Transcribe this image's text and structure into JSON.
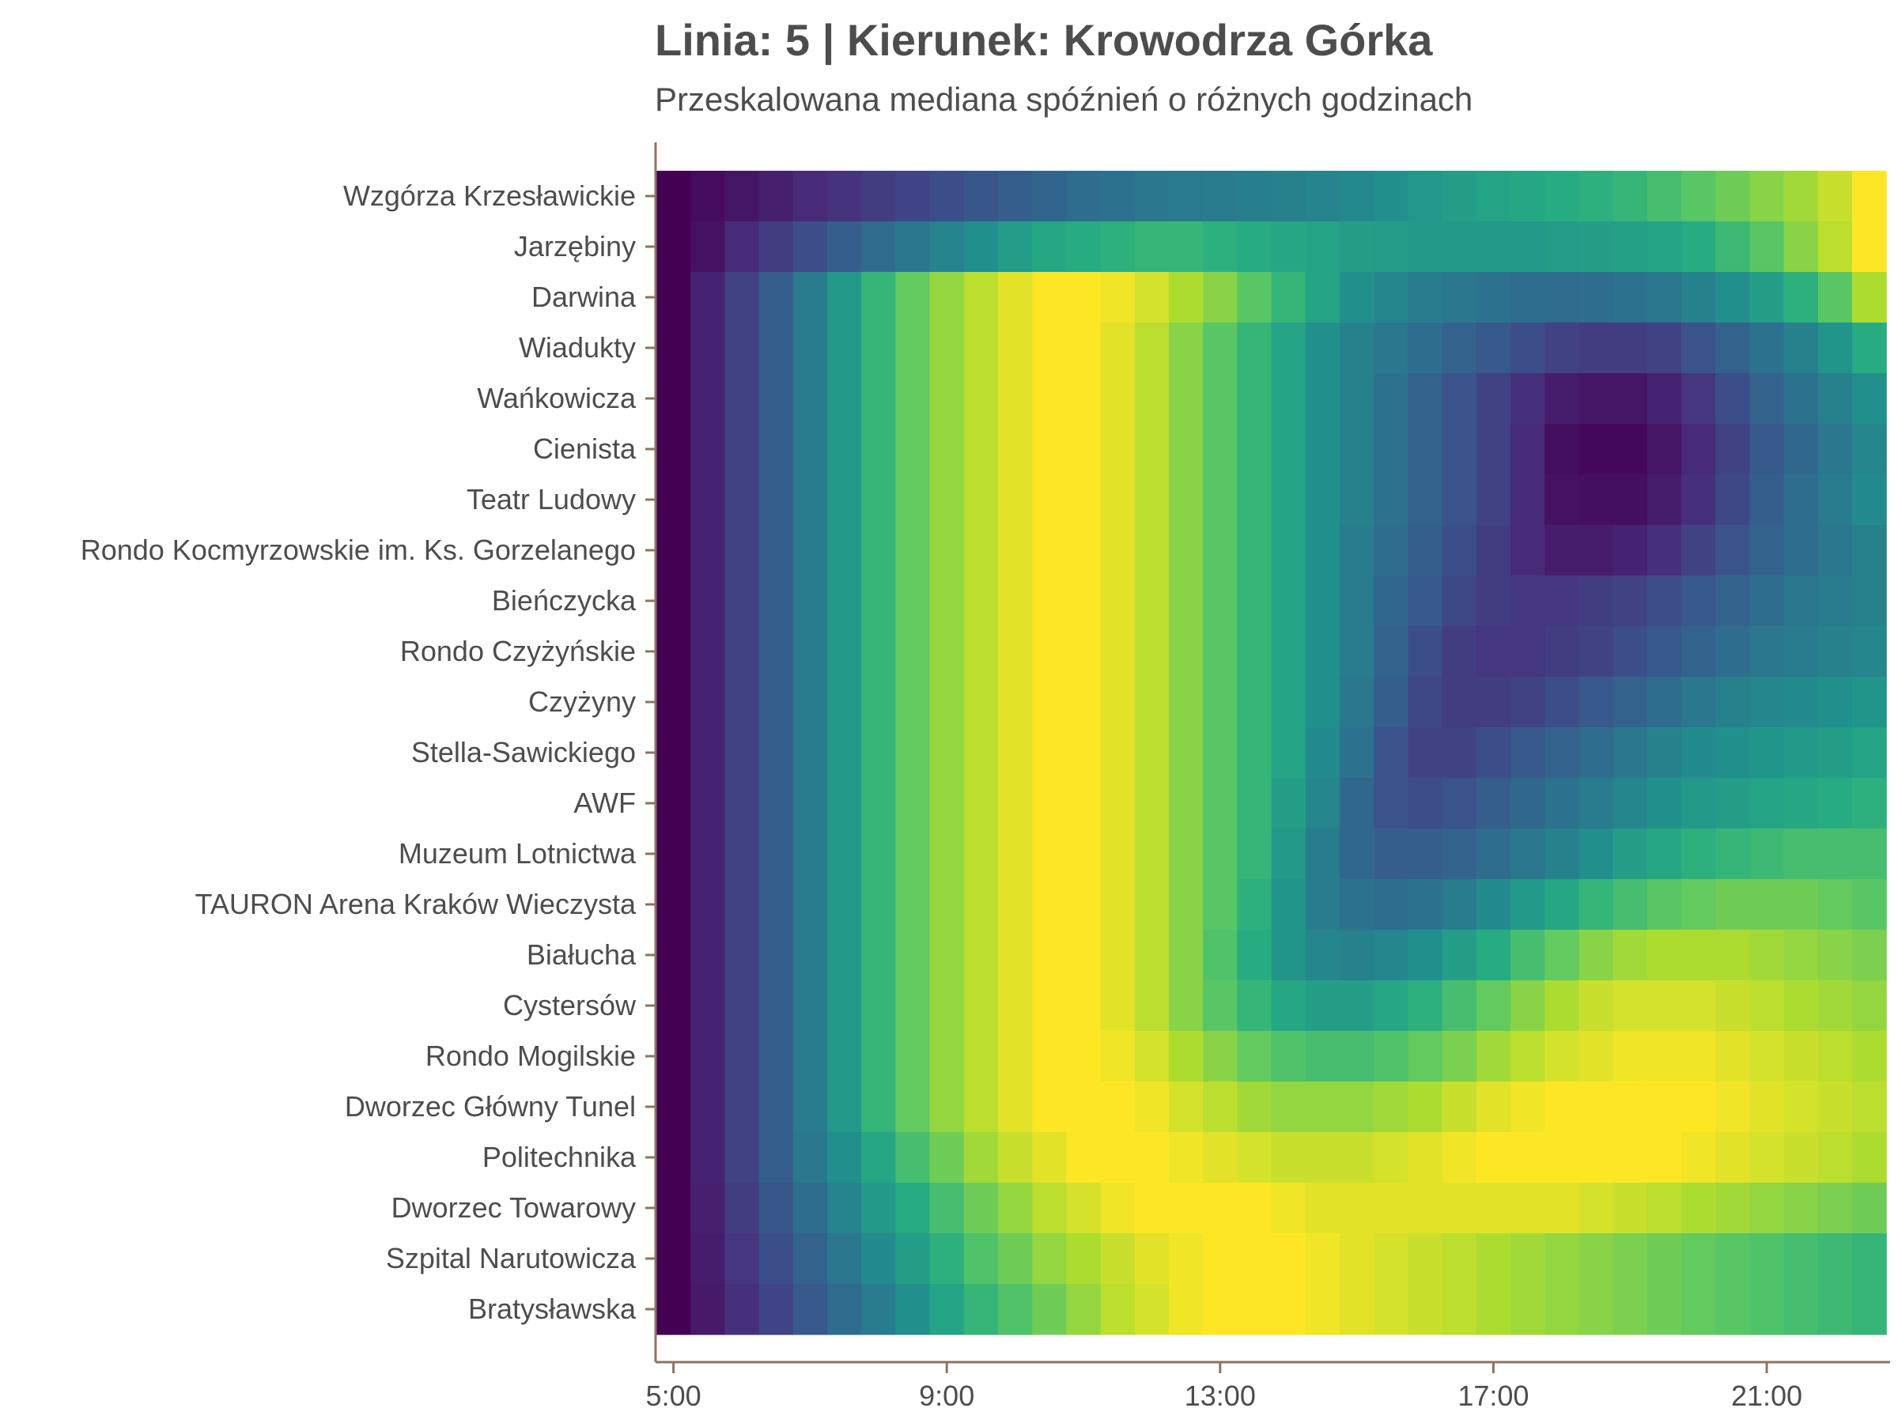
{
  "chart_data": {
    "type": "heatmap",
    "title": "Linia: 5 | Kierunek: Krowodrza Górka",
    "subtitle": "Przeskalowana mediana spóźnień o różnych godzinach",
    "xlabel": "",
    "ylabel": "",
    "x": [
      "5:00",
      "5:30",
      "6:00",
      "6:30",
      "7:00",
      "7:30",
      "8:00",
      "8:30",
      "9:00",
      "9:30",
      "10:00",
      "10:30",
      "11:00",
      "11:30",
      "12:00",
      "12:30",
      "13:00",
      "13:30",
      "14:00",
      "14:30",
      "15:00",
      "15:30",
      "16:00",
      "16:30",
      "17:00",
      "17:30",
      "18:00",
      "18:30",
      "19:00",
      "19:30",
      "20:00",
      "20:30",
      "21:00",
      "21:30",
      "22:00",
      "22:30"
    ],
    "x_ticks": [
      "5:00",
      "9:00",
      "13:00",
      "17:00",
      "21:00"
    ],
    "y": [
      "Wzgórza Krzesławickie",
      "Jarzębiny",
      "Darwina",
      "Wiadukty",
      "Wańkowicza",
      "Cienista",
      "Teatr Ludowy",
      "Rondo Kocmyrzowskie im. Ks. Gorzelanego",
      "Bieńczycka",
      "Rondo Czyżyńskie",
      "Czyżyny",
      "Stella-Sawickiego",
      "AWF",
      "Muzeum Lotnictwa",
      "TAURON Arena Kraków Wieczysta",
      "Białucha",
      "Cystersów",
      "Rondo Mogilskie",
      "Dworzec Główny Tunel",
      "Politechnika",
      "Dworzec Towarowy",
      "Szpital Narutowicza",
      "Bratysławska"
    ],
    "value_range": [
      0,
      1
    ],
    "colormap": "viridis",
    "grid": false,
    "legend": "none",
    "values": [
      [
        0.0,
        0.03,
        0.06,
        0.09,
        0.12,
        0.15,
        0.18,
        0.21,
        0.24,
        0.27,
        0.3,
        0.33,
        0.36,
        0.38,
        0.4,
        0.41,
        0.42,
        0.43,
        0.44,
        0.45,
        0.47,
        0.5,
        0.53,
        0.56,
        0.58,
        0.6,
        0.62,
        0.64,
        0.66,
        0.7,
        0.74,
        0.78,
        0.82,
        0.86,
        0.92,
        1.0
      ],
      [
        0.0,
        0.05,
        0.12,
        0.18,
        0.24,
        0.3,
        0.35,
        0.4,
        0.45,
        0.5,
        0.55,
        0.6,
        0.62,
        0.64,
        0.66,
        0.66,
        0.64,
        0.62,
        0.6,
        0.58,
        0.56,
        0.55,
        0.54,
        0.54,
        0.54,
        0.54,
        0.55,
        0.56,
        0.57,
        0.58,
        0.62,
        0.68,
        0.74,
        0.82,
        0.9,
        1.0
      ],
      [
        0.0,
        0.1,
        0.2,
        0.3,
        0.42,
        0.54,
        0.66,
        0.76,
        0.84,
        0.9,
        0.96,
        1.0,
        1.0,
        0.98,
        0.94,
        0.88,
        0.82,
        0.74,
        0.66,
        0.58,
        0.5,
        0.46,
        0.42,
        0.4,
        0.38,
        0.36,
        0.35,
        0.36,
        0.38,
        0.4,
        0.44,
        0.5,
        0.56,
        0.64,
        0.74,
        0.88
      ],
      [
        0.0,
        0.1,
        0.2,
        0.3,
        0.42,
        0.54,
        0.66,
        0.76,
        0.84,
        0.9,
        0.96,
        1.0,
        1.0,
        0.96,
        0.9,
        0.82,
        0.74,
        0.66,
        0.58,
        0.5,
        0.44,
        0.4,
        0.36,
        0.32,
        0.28,
        0.24,
        0.2,
        0.18,
        0.18,
        0.2,
        0.26,
        0.32,
        0.38,
        0.44,
        0.52,
        0.62
      ],
      [
        0.0,
        0.1,
        0.2,
        0.3,
        0.42,
        0.54,
        0.66,
        0.76,
        0.84,
        0.9,
        0.96,
        1.0,
        1.0,
        0.96,
        0.9,
        0.82,
        0.74,
        0.66,
        0.58,
        0.5,
        0.44,
        0.38,
        0.32,
        0.26,
        0.2,
        0.14,
        0.08,
        0.06,
        0.06,
        0.1,
        0.16,
        0.24,
        0.32,
        0.38,
        0.44,
        0.5
      ],
      [
        0.0,
        0.1,
        0.2,
        0.3,
        0.42,
        0.54,
        0.66,
        0.76,
        0.84,
        0.9,
        0.96,
        1.0,
        1.0,
        0.96,
        0.9,
        0.82,
        0.74,
        0.66,
        0.58,
        0.5,
        0.44,
        0.38,
        0.32,
        0.26,
        0.2,
        0.12,
        0.04,
        0.02,
        0.02,
        0.06,
        0.12,
        0.2,
        0.28,
        0.34,
        0.4,
        0.46
      ],
      [
        0.0,
        0.1,
        0.2,
        0.3,
        0.42,
        0.54,
        0.66,
        0.76,
        0.84,
        0.9,
        0.96,
        1.0,
        1.0,
        0.96,
        0.9,
        0.82,
        0.74,
        0.66,
        0.58,
        0.5,
        0.44,
        0.38,
        0.32,
        0.26,
        0.2,
        0.12,
        0.05,
        0.04,
        0.04,
        0.08,
        0.14,
        0.22,
        0.3,
        0.36,
        0.42,
        0.48
      ],
      [
        0.0,
        0.1,
        0.2,
        0.3,
        0.42,
        0.54,
        0.66,
        0.76,
        0.84,
        0.9,
        0.96,
        1.0,
        1.0,
        0.96,
        0.9,
        0.82,
        0.74,
        0.66,
        0.58,
        0.5,
        0.42,
        0.36,
        0.3,
        0.24,
        0.18,
        0.12,
        0.08,
        0.08,
        0.1,
        0.14,
        0.2,
        0.26,
        0.32,
        0.36,
        0.4,
        0.44
      ],
      [
        0.0,
        0.1,
        0.2,
        0.3,
        0.42,
        0.54,
        0.66,
        0.76,
        0.84,
        0.9,
        0.96,
        1.0,
        1.0,
        0.96,
        0.9,
        0.82,
        0.74,
        0.66,
        0.58,
        0.5,
        0.42,
        0.34,
        0.28,
        0.22,
        0.18,
        0.16,
        0.16,
        0.18,
        0.2,
        0.24,
        0.28,
        0.32,
        0.36,
        0.4,
        0.42,
        0.44
      ],
      [
        0.0,
        0.1,
        0.2,
        0.3,
        0.42,
        0.54,
        0.66,
        0.76,
        0.84,
        0.9,
        0.96,
        1.0,
        1.0,
        0.96,
        0.9,
        0.82,
        0.74,
        0.66,
        0.58,
        0.5,
        0.42,
        0.32,
        0.24,
        0.18,
        0.16,
        0.16,
        0.18,
        0.2,
        0.24,
        0.28,
        0.32,
        0.36,
        0.4,
        0.42,
        0.44,
        0.46
      ],
      [
        0.0,
        0.1,
        0.2,
        0.3,
        0.42,
        0.54,
        0.66,
        0.76,
        0.84,
        0.9,
        0.96,
        1.0,
        1.0,
        0.96,
        0.9,
        0.82,
        0.74,
        0.66,
        0.58,
        0.5,
        0.4,
        0.3,
        0.22,
        0.18,
        0.18,
        0.2,
        0.24,
        0.28,
        0.32,
        0.36,
        0.4,
        0.44,
        0.46,
        0.48,
        0.5,
        0.52
      ],
      [
        0.0,
        0.1,
        0.2,
        0.3,
        0.42,
        0.54,
        0.66,
        0.76,
        0.84,
        0.9,
        0.96,
        1.0,
        1.0,
        0.96,
        0.9,
        0.82,
        0.74,
        0.66,
        0.58,
        0.48,
        0.38,
        0.26,
        0.2,
        0.2,
        0.24,
        0.28,
        0.32,
        0.36,
        0.4,
        0.44,
        0.48,
        0.5,
        0.52,
        0.54,
        0.56,
        0.58
      ],
      [
        0.0,
        0.1,
        0.2,
        0.3,
        0.42,
        0.54,
        0.66,
        0.76,
        0.84,
        0.9,
        0.96,
        1.0,
        1.0,
        0.96,
        0.9,
        0.82,
        0.74,
        0.66,
        0.56,
        0.46,
        0.34,
        0.26,
        0.24,
        0.26,
        0.3,
        0.34,
        0.38,
        0.42,
        0.46,
        0.5,
        0.54,
        0.56,
        0.58,
        0.6,
        0.62,
        0.64
      ],
      [
        0.0,
        0.1,
        0.2,
        0.3,
        0.42,
        0.54,
        0.66,
        0.76,
        0.84,
        0.9,
        0.96,
        1.0,
        1.0,
        0.96,
        0.9,
        0.82,
        0.74,
        0.66,
        0.54,
        0.42,
        0.34,
        0.3,
        0.3,
        0.32,
        0.36,
        0.4,
        0.44,
        0.5,
        0.56,
        0.6,
        0.64,
        0.66,
        0.68,
        0.7,
        0.7,
        0.7
      ],
      [
        0.0,
        0.1,
        0.2,
        0.3,
        0.42,
        0.54,
        0.66,
        0.76,
        0.84,
        0.9,
        0.96,
        1.0,
        1.0,
        0.96,
        0.9,
        0.82,
        0.74,
        0.64,
        0.52,
        0.42,
        0.38,
        0.36,
        0.38,
        0.42,
        0.48,
        0.54,
        0.6,
        0.66,
        0.7,
        0.74,
        0.76,
        0.78,
        0.78,
        0.78,
        0.76,
        0.74
      ],
      [
        0.0,
        0.1,
        0.2,
        0.3,
        0.42,
        0.54,
        0.66,
        0.76,
        0.84,
        0.9,
        0.96,
        1.0,
        1.0,
        0.96,
        0.9,
        0.82,
        0.72,
        0.62,
        0.52,
        0.46,
        0.44,
        0.46,
        0.5,
        0.56,
        0.62,
        0.7,
        0.76,
        0.82,
        0.86,
        0.88,
        0.88,
        0.88,
        0.86,
        0.84,
        0.82,
        0.8
      ],
      [
        0.0,
        0.1,
        0.2,
        0.3,
        0.42,
        0.54,
        0.66,
        0.76,
        0.84,
        0.9,
        0.96,
        1.0,
        1.0,
        0.96,
        0.9,
        0.82,
        0.74,
        0.66,
        0.6,
        0.56,
        0.56,
        0.6,
        0.64,
        0.7,
        0.76,
        0.82,
        0.88,
        0.92,
        0.94,
        0.94,
        0.94,
        0.92,
        0.9,
        0.88,
        0.86,
        0.84
      ],
      [
        0.0,
        0.1,
        0.2,
        0.3,
        0.42,
        0.54,
        0.66,
        0.76,
        0.84,
        0.9,
        0.96,
        1.0,
        1.0,
        0.98,
        0.94,
        0.88,
        0.82,
        0.76,
        0.72,
        0.7,
        0.7,
        0.72,
        0.76,
        0.8,
        0.86,
        0.9,
        0.94,
        0.96,
        0.98,
        0.98,
        0.98,
        0.96,
        0.94,
        0.92,
        0.9,
        0.88
      ],
      [
        0.0,
        0.1,
        0.2,
        0.3,
        0.42,
        0.54,
        0.66,
        0.76,
        0.84,
        0.9,
        0.96,
        1.0,
        1.0,
        1.0,
        0.98,
        0.94,
        0.9,
        0.86,
        0.84,
        0.84,
        0.84,
        0.86,
        0.88,
        0.92,
        0.96,
        0.98,
        1.0,
        1.0,
        1.0,
        1.0,
        1.0,
        0.98,
        0.96,
        0.94,
        0.92,
        0.9
      ],
      [
        0.0,
        0.1,
        0.2,
        0.3,
        0.4,
        0.5,
        0.6,
        0.7,
        0.78,
        0.86,
        0.92,
        0.96,
        1.0,
        1.0,
        1.0,
        0.98,
        0.96,
        0.94,
        0.92,
        0.92,
        0.92,
        0.94,
        0.96,
        0.98,
        1.0,
        1.0,
        1.0,
        1.0,
        1.0,
        1.0,
        0.98,
        0.96,
        0.94,
        0.92,
        0.9,
        0.88
      ],
      [
        0.0,
        0.09,
        0.18,
        0.27,
        0.36,
        0.45,
        0.54,
        0.62,
        0.7,
        0.78,
        0.84,
        0.9,
        0.94,
        0.98,
        1.0,
        1.0,
        1.0,
        1.0,
        0.98,
        0.96,
        0.96,
        0.96,
        0.96,
        0.96,
        0.96,
        0.96,
        0.96,
        0.94,
        0.92,
        0.9,
        0.88,
        0.86,
        0.84,
        0.82,
        0.8,
        0.78
      ],
      [
        0.0,
        0.08,
        0.16,
        0.24,
        0.32,
        0.4,
        0.48,
        0.56,
        0.64,
        0.72,
        0.78,
        0.84,
        0.88,
        0.92,
        0.96,
        0.98,
        1.0,
        1.0,
        1.0,
        0.98,
        0.96,
        0.94,
        0.92,
        0.9,
        0.88,
        0.86,
        0.84,
        0.82,
        0.8,
        0.78,
        0.76,
        0.74,
        0.72,
        0.7,
        0.68,
        0.66
      ],
      [
        0.0,
        0.07,
        0.14,
        0.21,
        0.28,
        0.35,
        0.42,
        0.5,
        0.58,
        0.66,
        0.72,
        0.78,
        0.84,
        0.9,
        0.94,
        0.98,
        1.0,
        1.0,
        1.0,
        0.98,
        0.96,
        0.94,
        0.92,
        0.9,
        0.88,
        0.86,
        0.84,
        0.82,
        0.8,
        0.78,
        0.76,
        0.74,
        0.72,
        0.7,
        0.68,
        0.66
      ]
    ]
  }
}
